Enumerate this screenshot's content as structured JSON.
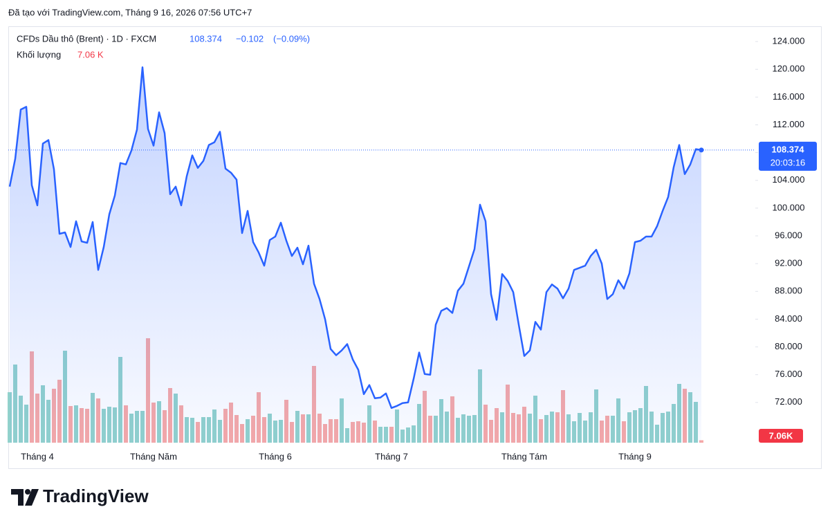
{
  "header": "Đã tạo với TradingView.com, Tháng 9 16, 2026 07:56 UTC+7",
  "logo": "TradingView",
  "chart_data": {
    "type": "area",
    "legend_title": "CFDs Dầu thô (Brent) · 1D · FXCM",
    "change": {
      "value": -0.102,
      "label": "−0.102"
    },
    "change_percent": {
      "value": -0.09,
      "label": "(−0.09%)"
    },
    "countdown": "20:03:16",
    "categories": [
      null,
      null,
      null,
      null,
      null,
      "Tháng 4",
      null,
      null,
      null,
      null,
      null,
      null,
      null,
      null,
      null,
      null,
      null,
      null,
      null,
      null,
      null,
      null,
      null,
      null,
      null,
      null,
      "Tháng Năm",
      null,
      null,
      null,
      null,
      null,
      null,
      null,
      null,
      null,
      null,
      null,
      null,
      null,
      null,
      null,
      null,
      null,
      null,
      null,
      null,
      null,
      "Tháng 6",
      null,
      null,
      null,
      null,
      null,
      null,
      null,
      null,
      null,
      null,
      null,
      null,
      null,
      null,
      null,
      null,
      null,
      null,
      null,
      null,
      "Tháng 7",
      null,
      null,
      null,
      null,
      null,
      null,
      null,
      null,
      null,
      null,
      null,
      null,
      null,
      null,
      null,
      null,
      null,
      null,
      null,
      null,
      null,
      null,
      null,
      "Tháng Tám",
      null,
      null,
      null,
      null,
      null,
      null,
      null,
      null,
      null,
      null,
      null,
      null,
      null,
      null,
      null,
      null,
      null,
      null,
      null,
      "Tháng 9",
      null,
      null,
      null,
      null,
      null,
      null,
      null,
      null,
      null,
      null,
      null,
      null
    ],
    "series": [
      {
        "color": "#2962ff",
        "values": [
          103.1,
          107.1,
          114.2,
          114.6,
          103.3,
          100.4,
          109.3,
          109.8,
          105.6,
          96.3,
          96.5,
          94.4,
          98.1,
          95.2,
          95.0,
          98.0,
          91.1,
          94.4,
          99.1,
          101.8,
          106.5,
          106.3,
          108.3,
          111.3,
          120.3,
          111.4,
          109.0,
          113.8,
          110.8,
          102.0,
          103.1,
          100.4,
          104.6,
          107.6,
          105.8,
          106.8,
          109.1,
          109.5,
          111.0,
          105.7,
          105.1,
          104.1,
          96.4,
          99.6,
          95.1,
          93.6,
          91.7,
          95.4,
          95.9,
          97.9,
          95.3,
          93.1,
          94.3,
          91.9,
          94.6,
          89.1,
          86.9,
          84.0,
          79.7,
          78.8,
          79.5,
          80.4,
          78.2,
          76.7,
          73.2,
          74.5,
          72.6,
          72.7,
          73.3,
          71.2,
          71.5,
          71.9,
          72.0,
          75.4,
          79.2,
          76.1,
          76.0,
          83.2,
          85.2,
          85.6,
          84.9,
          88.1,
          89.1,
          91.6,
          94.1,
          100.5,
          98.1,
          87.6,
          83.9,
          90.5,
          89.5,
          87.9,
          83.2,
          78.7,
          79.5,
          83.6,
          82.5,
          87.9,
          89.0,
          88.4,
          87.0,
          88.4,
          91.1,
          91.4,
          91.7,
          93.1,
          94.0,
          92.0,
          86.9,
          87.6,
          89.6,
          88.4,
          90.6,
          95.1,
          95.3,
          95.9,
          95.9,
          97.4,
          99.6,
          101.6,
          105.9,
          109.1,
          104.9,
          106.3,
          108.5,
          108.374
        ]
      }
    ],
    "ylim": [
      66.2,
      126.2
    ],
    "yticks": [
      {
        "value": 72,
        "label": "72.000"
      },
      {
        "value": 76,
        "label": "76.000"
      },
      {
        "value": 80,
        "label": "80.000"
      },
      {
        "value": 84,
        "label": "84.000"
      },
      {
        "value": 88,
        "label": "88.000"
      },
      {
        "value": 92,
        "label": "92.000"
      },
      {
        "value": 96,
        "label": "96.000"
      },
      {
        "value": 100,
        "label": "100.000"
      },
      {
        "value": 104,
        "label": "104.000"
      },
      {
        "value": 108,
        "label": "108.000"
      },
      {
        "value": 112,
        "label": "112.000"
      },
      {
        "value": 116,
        "label": "116.000"
      },
      {
        "value": 120,
        "label": "120.000"
      },
      {
        "value": 124,
        "label": "124.000"
      }
    ],
    "volume": {
      "name": "Khối lượng",
      "legend_label": "7.06 K",
      "axis_label": "7.06K",
      "up_color": "#92d2cc",
      "down_color": "#f7a9a7",
      "ylim": [
        0,
        320
      ],
      "values": [
        146,
        226,
        136,
        110,
        264,
        142,
        166,
        124,
        156,
        182,
        266,
        106,
        108,
        100,
        98,
        144,
        128,
        98,
        104,
        102,
        248,
        108,
        84,
        92,
        92,
        302,
        116,
        120,
        94,
        158,
        142,
        108,
        74,
        72,
        60,
        74,
        74,
        96,
        66,
        98,
        116,
        80,
        54,
        68,
        78,
        146,
        74,
        84,
        64,
        66,
        124,
        60,
        92,
        82,
        82,
        222,
        84,
        54,
        68,
        68,
        128,
        42,
        60,
        62,
        58,
        108,
        64,
        46,
        46,
        46,
        96,
        38,
        44,
        50,
        112,
        150,
        78,
        78,
        126,
        90,
        134,
        72,
        82,
        78,
        80,
        212,
        110,
        66,
        100,
        88,
        168,
        86,
        82,
        104,
        84,
        136,
        68,
        80,
        90,
        88,
        152,
        82,
        62,
        86,
        64,
        88,
        154,
        64,
        78,
        78,
        128,
        62,
        88,
        94,
        100,
        164,
        90,
        52,
        86,
        90,
        112,
        170,
        156,
        146,
        118,
        7.06
      ]
    }
  }
}
